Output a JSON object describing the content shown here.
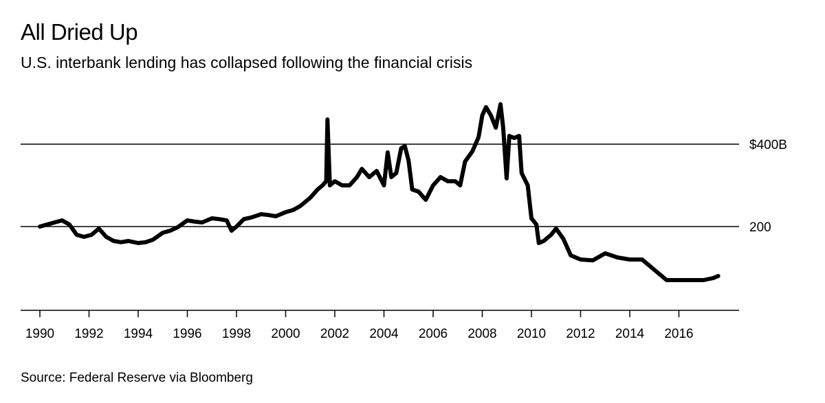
{
  "chart_data": {
    "type": "line",
    "title": "All Dried Up",
    "subtitle": "U.S. interbank lending has collapsed following the financial crisis",
    "source": "Source: Federal Reserve via Bloomberg",
    "xlabel": "",
    "ylabel": "",
    "xlim": [
      1989.5,
      2018.7
    ],
    "ylim": [
      0,
      500
    ],
    "x_ticks": [
      1990,
      1992,
      1994,
      1996,
      1998,
      2000,
      2002,
      2004,
      2006,
      2008,
      2010,
      2012,
      2014,
      2016
    ],
    "x_tick_labels": [
      "1990",
      "1992",
      "1994",
      "1996",
      "1998",
      "2000",
      "2002",
      "2004",
      "2006",
      "2008",
      "2010",
      "2012",
      "2014",
      "2016"
    ],
    "y_gridlines": [
      200,
      400
    ],
    "y_tick_labels": [
      "200",
      "$400B"
    ],
    "grid": true,
    "line_color": "#000000",
    "series": [
      {
        "x": [
          1990,
          1990.3,
          1990.6,
          1990.9,
          1991.2,
          1991.5,
          1991.8,
          1992.1,
          1992.4,
          1992.7,
          1993,
          1993.3,
          1993.6,
          1994,
          1994.3,
          1994.6,
          1995,
          1995.3,
          1995.6,
          1996,
          1996.3,
          1996.6,
          1997,
          1997.3,
          1997.6,
          1997.8,
          1998,
          1998.3,
          1998.6,
          1999,
          1999.3,
          1999.6,
          2000,
          2000.3,
          2000.6,
          2001,
          2001.3,
          2001.5,
          2001.65,
          2001.7,
          2001.8,
          2002,
          2002.3,
          2002.6,
          2002.9,
          2003.1,
          2003.4,
          2003.7,
          2004,
          2004.15,
          2004.3,
          2004.5,
          2004.7,
          2004.85,
          2005,
          2005.15,
          2005.4,
          2005.7,
          2006,
          2006.3,
          2006.6,
          2006.9,
          2007.1,
          2007.3,
          2007.6,
          2007.85,
          2008,
          2008.15,
          2008.35,
          2008.55,
          2008.74,
          2008.85,
          2008.99,
          2009.1,
          2009.3,
          2009.5,
          2009.6,
          2009.85,
          2010,
          2010.2,
          2010.3,
          2010.5,
          2010.8,
          2011,
          2011.3,
          2011.6,
          2012,
          2012.5,
          2013,
          2013.5,
          2014,
          2014.5,
          2015,
          2015.5,
          2016,
          2016.5,
          2017,
          2017.4,
          2017.6
        ],
        "y": [
          200,
          205,
          210,
          215,
          205,
          180,
          175,
          180,
          195,
          175,
          165,
          162,
          165,
          160,
          162,
          168,
          185,
          190,
          198,
          215,
          212,
          210,
          220,
          218,
          215,
          190,
          200,
          218,
          222,
          230,
          228,
          225,
          235,
          240,
          250,
          270,
          290,
          300,
          310,
          460,
          300,
          310,
          300,
          300,
          320,
          340,
          320,
          335,
          300,
          380,
          320,
          330,
          390,
          395,
          360,
          290,
          285,
          265,
          300,
          320,
          310,
          310,
          300,
          358,
          383,
          417,
          470,
          490,
          470,
          440,
          497,
          440,
          317,
          420,
          415,
          420,
          330,
          300,
          220,
          205,
          160,
          165,
          180,
          195,
          170,
          130,
          120,
          118,
          135,
          125,
          120,
          120,
          95,
          70,
          70,
          70,
          70,
          75,
          80
        ]
      }
    ]
  }
}
